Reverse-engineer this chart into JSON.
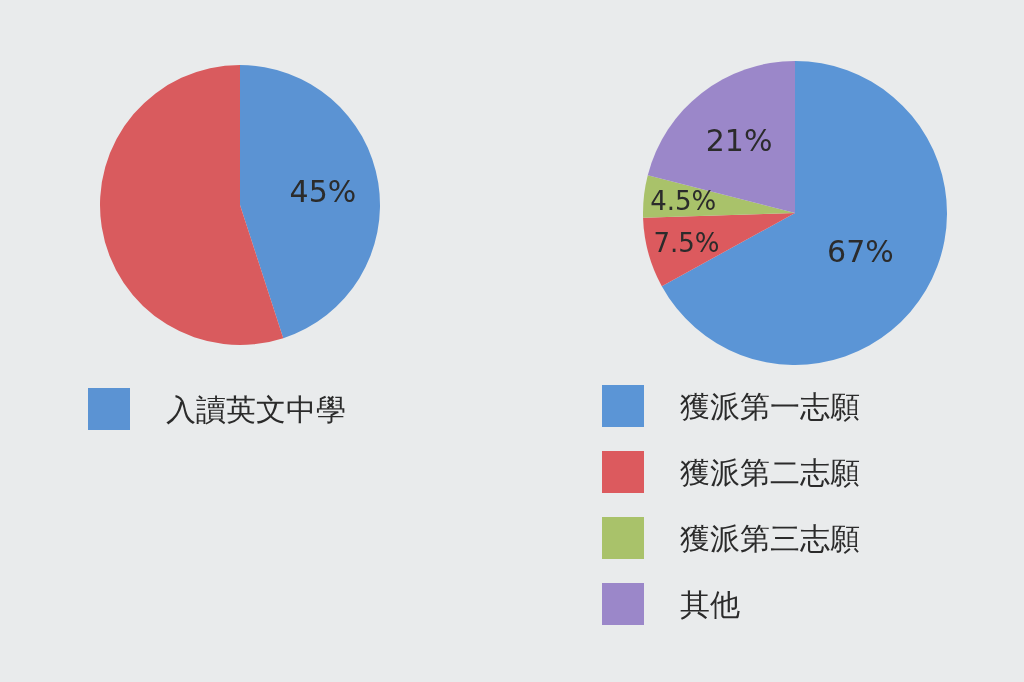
{
  "chart_data": [
    {
      "type": "pie",
      "categories": [
        "入讀英文中學",
        null
      ],
      "values": [
        45,
        55
      ],
      "colors": [
        "#5b93d3",
        "#d95b5e"
      ],
      "value_labels": [
        "45%",
        null
      ],
      "legend": "bottom"
    },
    {
      "type": "pie",
      "categories": [
        "獲派第一志願",
        "獲派第二志願",
        "獲派第三志願",
        "其他"
      ],
      "values": [
        67,
        7.5,
        4.5,
        21
      ],
      "colors": [
        "#5b95d6",
        "#dc5a5e",
        "#a9c26a",
        "#9b87c9"
      ],
      "value_labels": [
        "67%",
        "7.5%",
        "4.5%",
        "21%"
      ],
      "legend": "bottom"
    }
  ]
}
